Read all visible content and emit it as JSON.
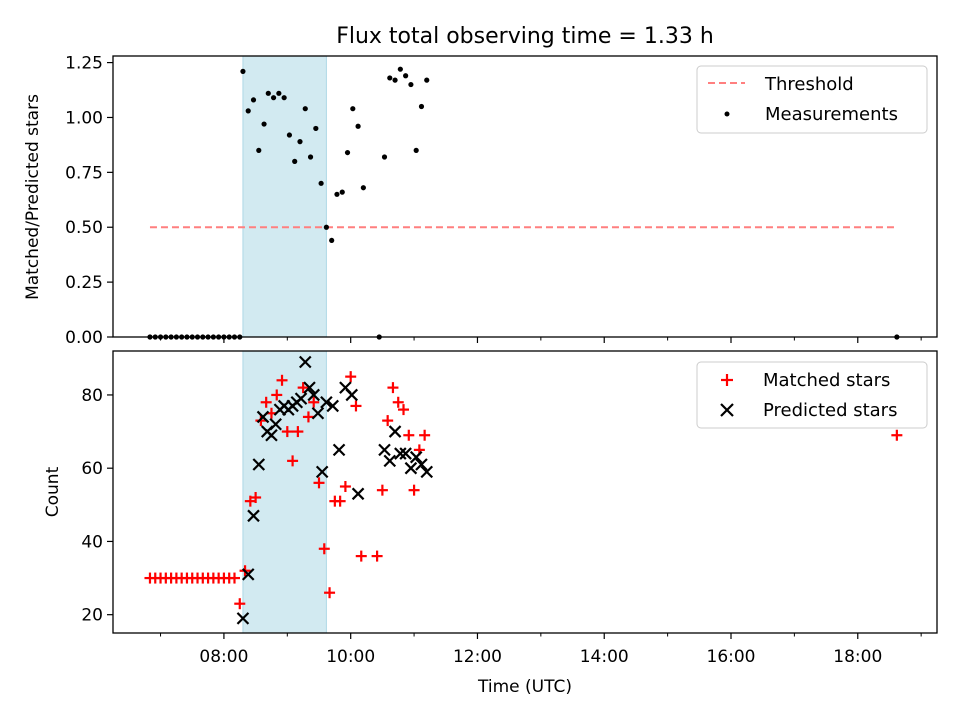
{
  "chart_data": {
    "title": "Flux total observing time = 1.33 h",
    "highlight": {
      "start": "08:18",
      "end": "09:37",
      "color": "#add8e6"
    },
    "x_axis": {
      "label": "Time (UTC)",
      "range": [
        "06:15",
        "19:15"
      ],
      "tick_labels": [
        "08:00",
        "10:00",
        "12:00",
        "14:00",
        "16:00",
        "18:00"
      ],
      "minor_ticks": [
        "07:00",
        "09:00",
        "11:00",
        "13:00",
        "15:00",
        "17:00",
        "19:00"
      ]
    },
    "panels": [
      {
        "type": "scatter",
        "ylabel": "Matched/Predicted stars",
        "ylim": [
          0,
          1.28
        ],
        "yticks": [
          "0.00",
          "0.25",
          "0.50",
          "0.75",
          "1.00",
          "1.25"
        ],
        "legend_position": "top-right",
        "threshold": {
          "name": "Threshold",
          "value": 0.5,
          "from": "06:50",
          "to": "18:37",
          "color": "#ff7f7f"
        },
        "series": [
          {
            "name": "Measurements",
            "marker": "dot",
            "color": "#000000",
            "points": [
              [
                "06:50",
                0
              ],
              [
                "06:55",
                0
              ],
              [
                "07:00",
                0
              ],
              [
                "07:05",
                0
              ],
              [
                "07:10",
                0
              ],
              [
                "07:15",
                0
              ],
              [
                "07:20",
                0
              ],
              [
                "07:25",
                0
              ],
              [
                "07:30",
                0
              ],
              [
                "07:35",
                0
              ],
              [
                "07:40",
                0
              ],
              [
                "07:45",
                0
              ],
              [
                "07:50",
                0
              ],
              [
                "07:55",
                0
              ],
              [
                "08:00",
                0
              ],
              [
                "08:05",
                0
              ],
              [
                "08:10",
                0
              ],
              [
                "08:15",
                0
              ],
              [
                "08:18",
                1.21
              ],
              [
                "08:23",
                1.03
              ],
              [
                "08:28",
                1.08
              ],
              [
                "08:33",
                0.85
              ],
              [
                "08:38",
                0.97
              ],
              [
                "08:42",
                1.11
              ],
              [
                "08:47",
                1.09
              ],
              [
                "08:52",
                1.11
              ],
              [
                "08:57",
                1.09
              ],
              [
                "09:02",
                0.92
              ],
              [
                "09:07",
                0.8
              ],
              [
                "09:12",
                0.89
              ],
              [
                "09:17",
                1.04
              ],
              [
                "09:22",
                0.82
              ],
              [
                "09:27",
                0.95
              ],
              [
                "09:32",
                0.7
              ],
              [
                "09:37",
                0.5
              ],
              [
                "09:42",
                0.44
              ],
              [
                "09:47",
                0.65
              ],
              [
                "09:52",
                0.66
              ],
              [
                "09:57",
                0.84
              ],
              [
                "10:02",
                1.04
              ],
              [
                "10:07",
                0.96
              ],
              [
                "10:12",
                0.68
              ],
              [
                "10:27",
                0
              ],
              [
                "10:32",
                0.82
              ],
              [
                "10:37",
                1.18
              ],
              [
                "10:42",
                1.17
              ],
              [
                "10:47",
                1.22
              ],
              [
                "10:52",
                1.19
              ],
              [
                "10:57",
                1.15
              ],
              [
                "11:02",
                0.85
              ],
              [
                "11:07",
                1.05
              ],
              [
                "11:12",
                1.17
              ],
              [
                "18:37",
                0
              ]
            ]
          }
        ]
      },
      {
        "type": "scatter",
        "ylabel": "Count",
        "ylim": [
          15,
          92
        ],
        "yticks": [
          "20",
          "40",
          "60",
          "80"
        ],
        "legend_position": "top-right",
        "series": [
          {
            "name": "Matched stars",
            "marker": "plus",
            "color": "#ff0000",
            "points": [
              [
                "06:50",
                30
              ],
              [
                "06:55",
                30
              ],
              [
                "07:00",
                30
              ],
              [
                "07:05",
                30
              ],
              [
                "07:10",
                30
              ],
              [
                "07:15",
                30
              ],
              [
                "07:20",
                30
              ],
              [
                "07:25",
                30
              ],
              [
                "07:30",
                30
              ],
              [
                "07:35",
                30
              ],
              [
                "07:40",
                30
              ],
              [
                "07:45",
                30
              ],
              [
                "07:50",
                30
              ],
              [
                "07:55",
                30
              ],
              [
                "08:00",
                30
              ],
              [
                "08:05",
                30
              ],
              [
                "08:10",
                30
              ],
              [
                "08:15",
                23
              ],
              [
                "08:20",
                32
              ],
              [
                "08:25",
                51
              ],
              [
                "08:30",
                52
              ],
              [
                "08:35",
                73
              ],
              [
                "08:40",
                78
              ],
              [
                "08:45",
                75
              ],
              [
                "08:50",
                80
              ],
              [
                "08:55",
                84
              ],
              [
                "09:00",
                70
              ],
              [
                "09:05",
                62
              ],
              [
                "09:10",
                70
              ],
              [
                "09:15",
                82
              ],
              [
                "09:20",
                74
              ],
              [
                "09:25",
                78
              ],
              [
                "09:30",
                56
              ],
              [
                "09:35",
                38
              ],
              [
                "09:40",
                26
              ],
              [
                "09:45",
                51
              ],
              [
                "09:50",
                51
              ],
              [
                "09:55",
                55
              ],
              [
                "10:00",
                85
              ],
              [
                "10:05",
                77
              ],
              [
                "10:10",
                36
              ],
              [
                "10:25",
                36
              ],
              [
                "10:30",
                54
              ],
              [
                "10:35",
                73
              ],
              [
                "10:40",
                82
              ],
              [
                "10:45",
                78
              ],
              [
                "10:50",
                76
              ],
              [
                "10:55",
                69
              ],
              [
                "11:00",
                54
              ],
              [
                "11:05",
                65
              ],
              [
                "11:10",
                69
              ],
              [
                "18:37",
                69
              ]
            ]
          },
          {
            "name": "Predicted stars",
            "marker": "x",
            "color": "#000000",
            "points": [
              [
                "08:18",
                19
              ],
              [
                "08:23",
                31
              ],
              [
                "08:28",
                47
              ],
              [
                "08:33",
                61
              ],
              [
                "08:37",
                74
              ],
              [
                "08:41",
                70
              ],
              [
                "08:45",
                69
              ],
              [
                "08:49",
                72
              ],
              [
                "08:53",
                76
              ],
              [
                "08:57",
                77
              ],
              [
                "09:01",
                76
              ],
              [
                "09:05",
                77
              ],
              [
                "09:09",
                78
              ],
              [
                "09:13",
                79
              ],
              [
                "09:17",
                89
              ],
              [
                "09:21",
                82
              ],
              [
                "09:25",
                80
              ],
              [
                "09:29",
                75
              ],
              [
                "09:33",
                59
              ],
              [
                "09:37",
                78
              ],
              [
                "09:43",
                77
              ],
              [
                "09:49",
                65
              ],
              [
                "09:55",
                82
              ],
              [
                "10:01",
                80
              ],
              [
                "10:07",
                53
              ],
              [
                "10:32",
                65
              ],
              [
                "10:37",
                62
              ],
              [
                "10:42",
                70
              ],
              [
                "10:47",
                64
              ],
              [
                "10:52",
                64
              ],
              [
                "10:57",
                60
              ],
              [
                "11:02",
                63
              ],
              [
                "11:07",
                61
              ],
              [
                "11:12",
                59
              ]
            ]
          }
        ]
      }
    ]
  }
}
